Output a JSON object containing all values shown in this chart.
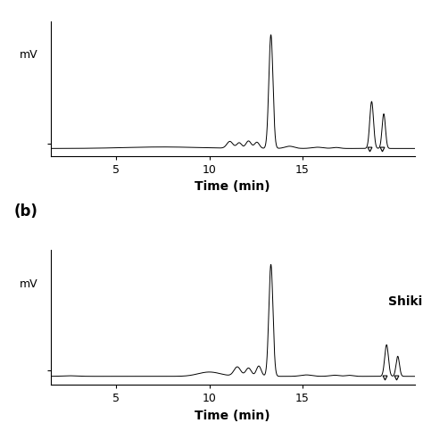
{
  "background_color": "#ffffff",
  "xlabel": "Time (min)",
  "ylabel": "mV",
  "xlabel_fontsize": 10,
  "ylabel_fontsize": 9,
  "tick_fontsize": 9,
  "label_b": "(b)",
  "label_b_fontsize": 12,
  "xticks": [
    5,
    10,
    15
  ],
  "xlim": [
    1.5,
    21
  ],
  "annotation_b": "Shikimic",
  "annotation_b_fontsize": 10
}
